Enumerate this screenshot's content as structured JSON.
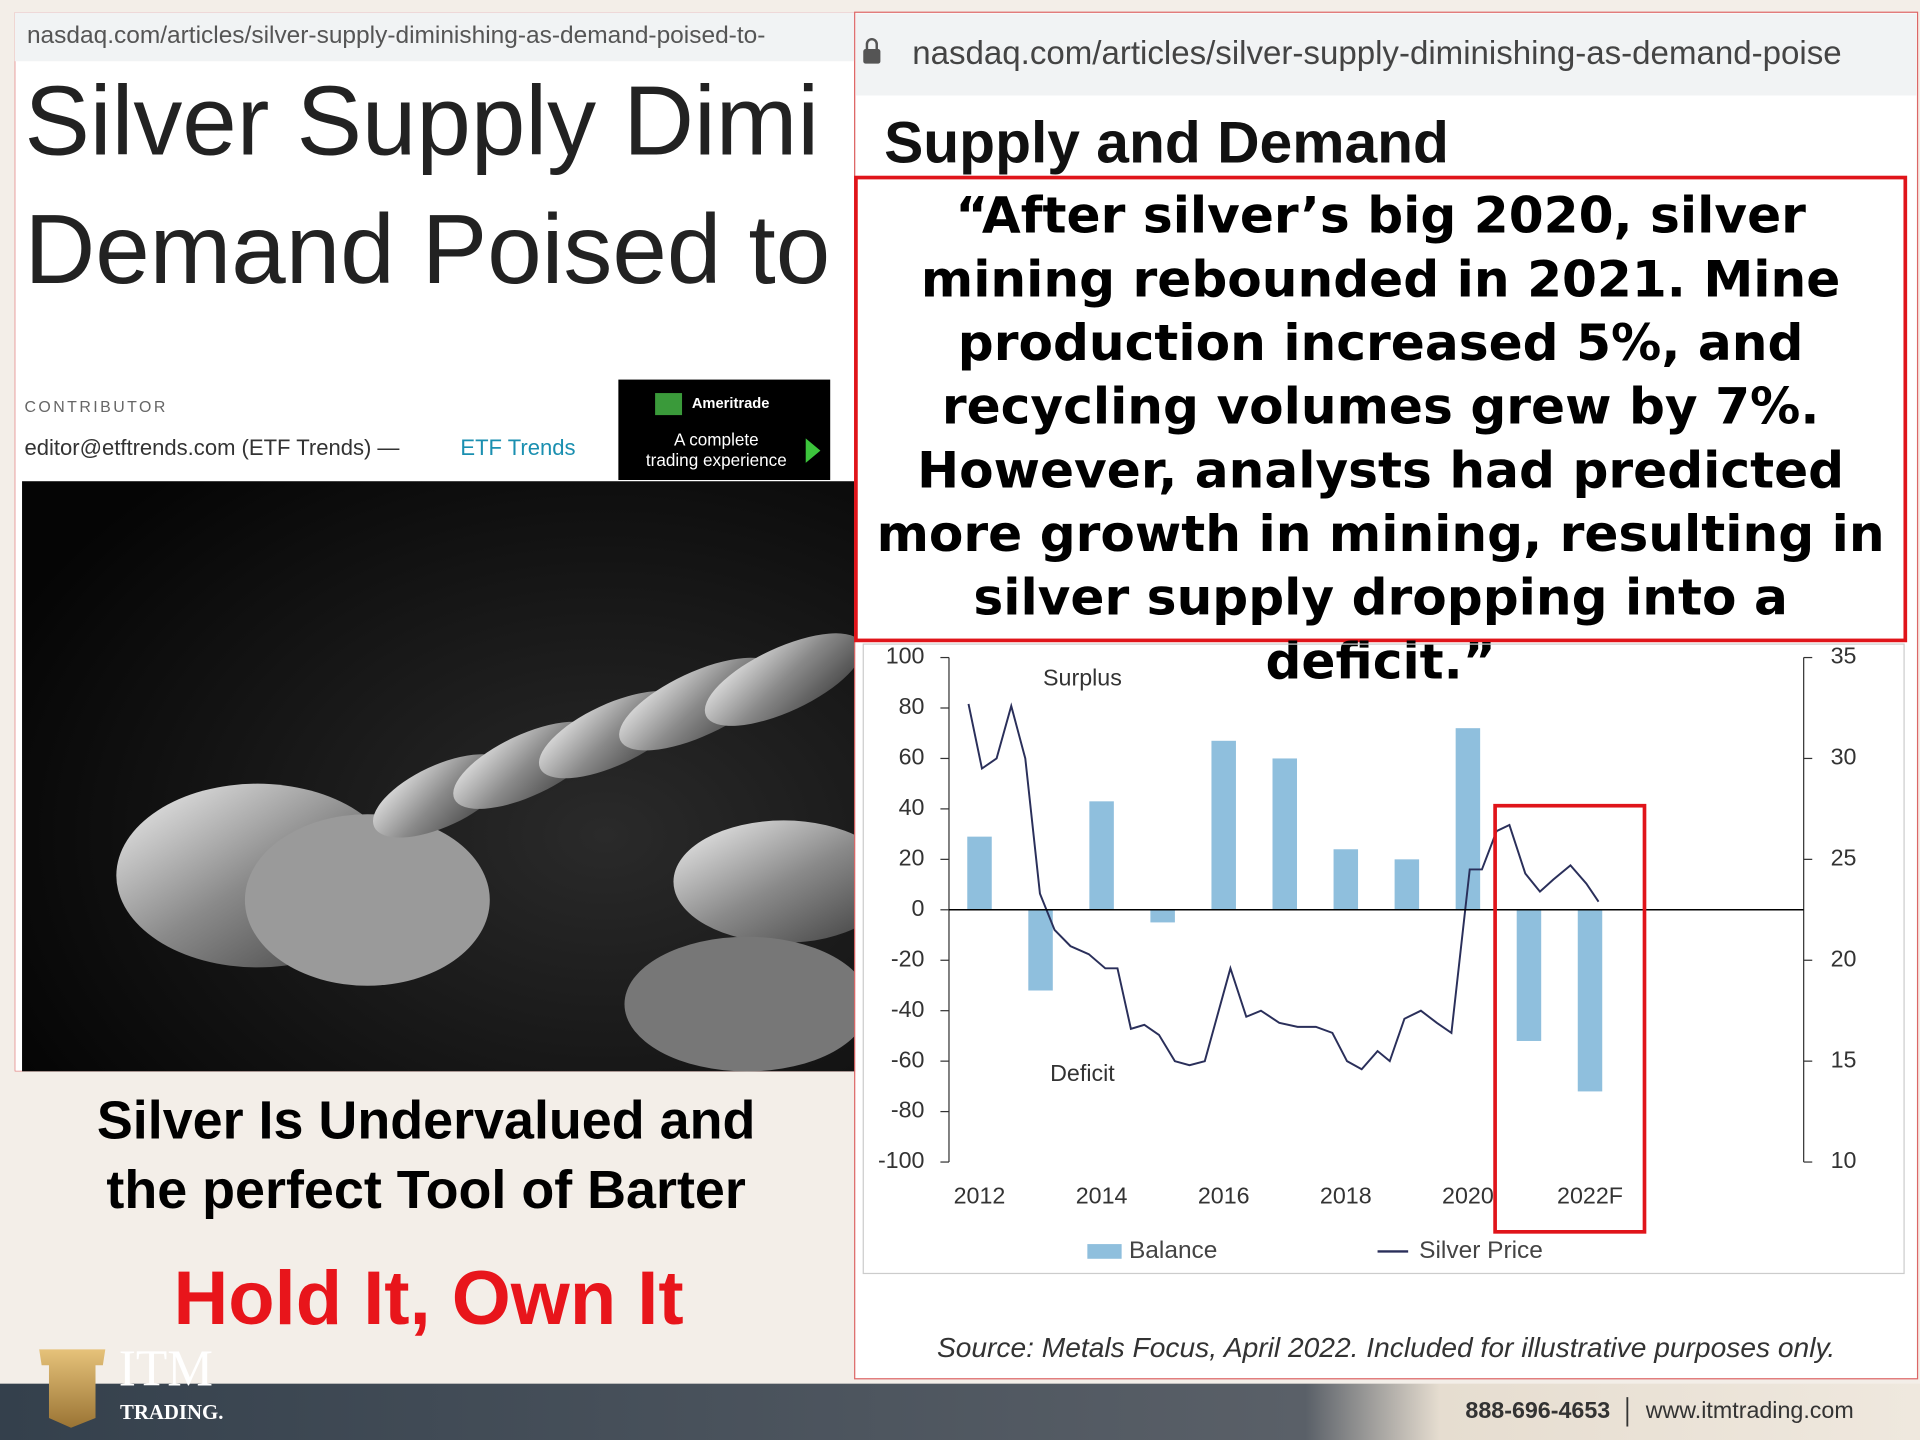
{
  "left_panel": {
    "url": "nasdaq.com/articles/silver-supply-diminishing-as-demand-poised-to-",
    "title_lines": [
      "Silver Supply Dimi",
      "Demand Poised to"
    ],
    "contributor_label": "CONTRIBUTOR",
    "author": "editor@etftrends.com (ETF Trends) —",
    "source_link": "ETF Trends",
    "ad": {
      "brand": "Ameritrade",
      "lines": [
        "A complete",
        "trading experience"
      ]
    }
  },
  "caption": {
    "lines": [
      "Silver Is Undervalued and",
      "the perfect Tool of Barter"
    ],
    "slogan": "Hold It, Own It"
  },
  "right_panel": {
    "url": "nasdaq.com/articles/silver-supply-diminishing-as-demand-poise",
    "heading": "Supply and Demand",
    "quote": "“After silver’s big 2020, silver mining rebounded in 2021. Mine production increased 5%, and recycling volumes grew by 7%. However, analysts had predicted more growth in mining, resulting in silver supply dropping into a deficit.”",
    "source": "Source: Metals Focus, April 2022. Included for illustrative purposes only."
  },
  "chart_data": {
    "type": "bar",
    "annotations": [
      "Surplus",
      "Deficit"
    ],
    "categories": [
      "2012",
      null,
      "2014",
      null,
      "2016",
      null,
      "2018",
      null,
      "2020",
      null,
      "2022F"
    ],
    "xlim": [
      2011.5,
      2025.5
    ],
    "ylim": [
      -100,
      100
    ],
    "yticks": [
      -100,
      -80,
      -60,
      -40,
      -20,
      0,
      20,
      40,
      60,
      80,
      100
    ],
    "y2lim": [
      10,
      35
    ],
    "y2ticks": [
      10,
      15,
      20,
      25,
      30,
      35
    ],
    "series": [
      {
        "name": "Balance",
        "color": "#8fbfdd",
        "values": [
          29,
          -32,
          43,
          -5,
          67,
          60,
          24,
          20,
          72,
          -52,
          -72
        ]
      },
      {
        "name": "Silver Price",
        "type": "line",
        "axis": "y2",
        "color": "#2a2f5a",
        "x": [
          2011.82,
          2012.04,
          2012.28,
          2012.52,
          2012.75,
          2012.99,
          2013.23,
          2013.49,
          2013.79,
          2014.06,
          2014.26,
          2014.48,
          2014.7,
          2014.94,
          2015.2,
          2015.44,
          2015.69,
          2016.11,
          2016.37,
          2016.61,
          2016.91,
          2017.21,
          2017.51,
          2017.78,
          2018.02,
          2018.26,
          2018.52,
          2018.72,
          2018.96,
          2019.23,
          2019.49,
          2019.73,
          2020.03,
          2020.23,
          2020.47,
          2020.68,
          2020.94,
          2021.18,
          2021.4,
          2021.68,
          2021.94,
          2022.14
        ],
        "values": [
          32.7,
          29.5,
          30.0,
          32.6,
          30.0,
          23.3,
          21.5,
          20.7,
          20.3,
          19.6,
          19.6,
          16.6,
          16.8,
          16.3,
          15.0,
          14.8,
          15.0,
          19.6,
          17.2,
          17.5,
          16.9,
          16.7,
          16.7,
          16.4,
          15.0,
          14.6,
          15.5,
          15.0,
          17.1,
          17.5,
          16.9,
          16.4,
          24.5,
          24.5,
          26.4,
          26.7,
          24.3,
          23.4,
          24.0,
          24.7,
          23.8,
          22.9
        ]
      }
    ]
  },
  "footer": {
    "logo": "ITM",
    "logo_sub": "TRADING.",
    "phone": "888-696-4653",
    "website": "www.itmtrading.com"
  }
}
